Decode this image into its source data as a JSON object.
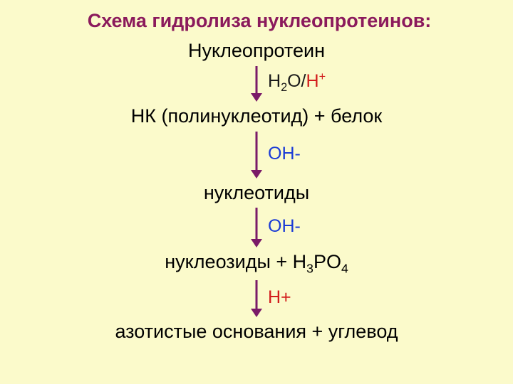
{
  "colors": {
    "background": "#fbfacb",
    "title": "#8b1a5c",
    "text": "#000000",
    "arrow_stroke": "#7a1a68",
    "arrow_width": 3,
    "label_black": "#1a1a1a",
    "label_red": "#d21c1c",
    "label_blue": "#1a3bd6"
  },
  "title": "Схема гидролиза нуклеопротеинов:",
  "steps": [
    "Нуклеопротеин",
    "НК (полинуклеотид) + белок",
    "нуклеотиды",
    "нуклеозиды + H₃PO₄",
    "азотистые основания + углевод"
  ],
  "step3_parts": {
    "pre": "нуклеозиды + H",
    "sub1": "3",
    "mid": "PO",
    "sub2": "4"
  },
  "arrows": [
    {
      "length": 50,
      "label_parts": [
        {
          "text": "Н",
          "color": "label_black"
        },
        {
          "text": "2",
          "color": "label_black",
          "sub": true
        },
        {
          "text": "О/",
          "color": "label_black"
        },
        {
          "text": "Н",
          "color": "label_red"
        },
        {
          "text": "+",
          "color": "label_red",
          "sup": true
        }
      ]
    },
    {
      "length": 66,
      "label_parts": [
        {
          "text": "ОН-",
          "color": "label_blue"
        }
      ]
    },
    {
      "length": 56,
      "label_parts": [
        {
          "text": "ОН-",
          "color": "label_blue"
        }
      ]
    },
    {
      "length": 52,
      "label_parts": [
        {
          "text": "Н+",
          "color": "label_red"
        }
      ]
    }
  ]
}
